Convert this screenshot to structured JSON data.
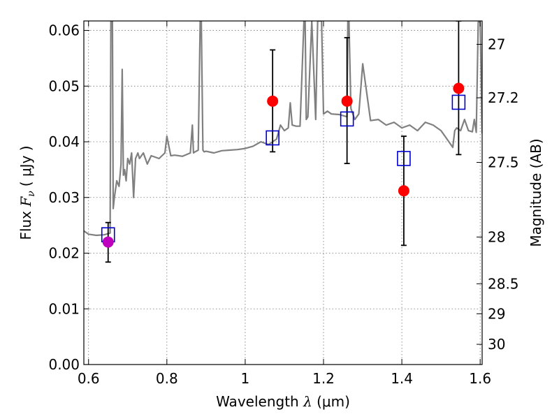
{
  "chart_data": {
    "type": "scatter",
    "xlabel_prefix": "Wavelength",
    "xlabel_lambda": "λ",
    "xlabel_unit": "(μm)",
    "ylabel_prefix": "Flux",
    "ylabel_symbol": "F",
    "ylabel_subscript": "ν",
    "ylabel_unit": "( μJy )",
    "y2label": "Magnitude (AB)",
    "xlim": [
      0.588,
      1.605
    ],
    "ylim": [
      0.0,
      0.0617
    ],
    "grid": true,
    "x_ticks": [
      0.6,
      0.8,
      1.0,
      1.2,
      1.4,
      1.6
    ],
    "x_tick_labels": [
      "0.6",
      "0.8",
      "1",
      "1.2",
      "1.4",
      "1.6"
    ],
    "y_ticks": [
      0.0,
      0.01,
      0.02,
      0.03,
      0.04,
      0.05,
      0.06
    ],
    "y_tick_labels": [
      "0.00",
      "0.01",
      "0.02",
      "0.03",
      "0.04",
      "0.05",
      "0.06"
    ],
    "y2_ticks": [
      {
        "flux": 0.0575,
        "label": "27"
      },
      {
        "flux": 0.0479,
        "label": "27.2"
      },
      {
        "flux": 0.0363,
        "label": "27.5"
      },
      {
        "flux": 0.0229,
        "label": "28"
      },
      {
        "flux": 0.0145,
        "label": "28.5"
      },
      {
        "flux": 0.00912,
        "label": "29"
      },
      {
        "flux": 0.00363,
        "label": "30"
      }
    ],
    "series": [
      {
        "kind": "observed",
        "color": "#ff0000",
        "points": [
          {
            "x": 1.07,
            "y": 0.0473,
            "yerr_low": 0.0382,
            "yerr_high": 0.0565
          },
          {
            "x": 1.26,
            "y": 0.0473,
            "yerr_low": 0.0361,
            "yerr_high": 0.0587
          },
          {
            "x": 1.405,
            "y": 0.0312,
            "yerr_low": 0.0214,
            "yerr_high": 0.041
          },
          {
            "x": 1.545,
            "y": 0.0496,
            "yerr_low": 0.0377,
            "yerr_high": 0.0617
          }
        ]
      },
      {
        "kind": "observed",
        "color": "#bf00bf",
        "points": [
          {
            "x": 0.65,
            "y": 0.022,
            "yerr_low": 0.0184,
            "yerr_high": 0.0255
          }
        ]
      },
      {
        "kind": "model",
        "color": "#0000cc",
        "marker": "open-square",
        "points": [
          {
            "x": 0.65,
            "y": 0.0233
          },
          {
            "x": 1.07,
            "y": 0.0407
          },
          {
            "x": 1.26,
            "y": 0.0441
          },
          {
            "x": 1.405,
            "y": 0.037
          },
          {
            "x": 1.545,
            "y": 0.0471
          }
        ]
      },
      {
        "kind": "spectrum",
        "color": "#808080",
        "x": [
          0.588,
          0.6,
          0.62,
          0.64,
          0.655,
          0.657,
          0.659,
          0.661,
          0.663,
          0.666,
          0.672,
          0.678,
          0.683,
          0.686,
          0.689,
          0.692,
          0.696,
          0.7,
          0.705,
          0.71,
          0.715,
          0.72,
          0.726,
          0.73,
          0.74,
          0.75,
          0.76,
          0.78,
          0.795,
          0.8,
          0.81,
          0.82,
          0.84,
          0.86,
          0.865,
          0.868,
          0.872,
          0.88,
          0.885,
          0.888,
          0.892,
          0.895,
          0.9,
          0.92,
          0.94,
          0.96,
          0.98,
          1.0,
          1.02,
          1.04,
          1.06,
          1.08,
          1.09,
          1.1,
          1.11,
          1.115,
          1.12,
          1.13,
          1.14,
          1.15,
          1.153,
          1.156,
          1.16,
          1.17,
          1.18,
          1.185,
          1.19,
          1.195,
          1.2,
          1.21,
          1.22,
          1.24,
          1.26,
          1.262,
          1.265,
          1.27,
          1.28,
          1.29,
          1.3,
          1.32,
          1.34,
          1.36,
          1.38,
          1.4,
          1.42,
          1.44,
          1.46,
          1.48,
          1.5,
          1.52,
          1.53,
          1.535,
          1.54,
          1.55,
          1.56,
          1.565,
          1.57,
          1.58,
          1.585,
          1.59,
          1.595,
          1.6,
          1.605
        ],
        "y": [
          0.024,
          0.0234,
          0.0232,
          0.0233,
          0.0236,
          0.0617,
          0.0617,
          0.0617,
          0.028,
          0.03,
          0.033,
          0.032,
          0.036,
          0.053,
          0.034,
          0.035,
          0.033,
          0.037,
          0.036,
          0.038,
          0.03,
          0.037,
          0.038,
          0.037,
          0.038,
          0.036,
          0.0375,
          0.037,
          0.038,
          0.041,
          0.0375,
          0.0376,
          0.0374,
          0.038,
          0.043,
          0.038,
          0.0382,
          0.0385,
          0.0617,
          0.0617,
          0.0385,
          0.0382,
          0.0383,
          0.038,
          0.0384,
          0.0385,
          0.0386,
          0.0388,
          0.0392,
          0.04,
          0.0395,
          0.0405,
          0.043,
          0.042,
          0.0425,
          0.047,
          0.043,
          0.0428,
          0.0428,
          0.0617,
          0.0617,
          0.044,
          0.0445,
          0.0617,
          0.044,
          0.0617,
          0.0617,
          0.0617,
          0.045,
          0.0455,
          0.045,
          0.0449,
          0.0445,
          0.0617,
          0.0617,
          0.046,
          0.044,
          0.045,
          0.054,
          0.0438,
          0.044,
          0.043,
          0.0435,
          0.0425,
          0.043,
          0.042,
          0.0435,
          0.043,
          0.042,
          0.04,
          0.039,
          0.042,
          0.0425,
          0.042,
          0.044,
          0.043,
          0.042,
          0.0418,
          0.044,
          0.0417,
          0.0615,
          0.0615,
          0.0415
        ]
      }
    ]
  }
}
